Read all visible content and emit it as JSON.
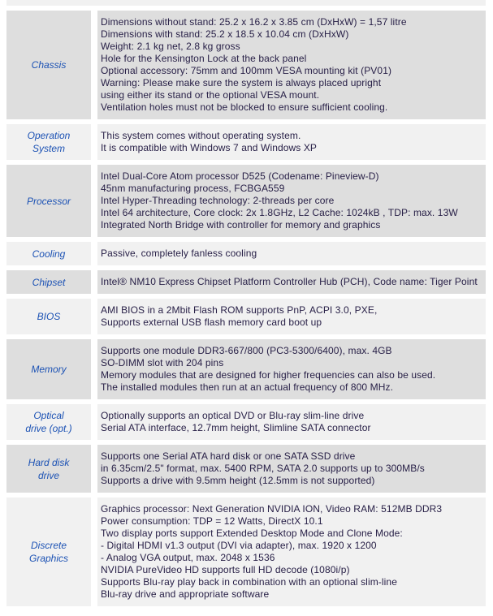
{
  "colors": {
    "row_dark": "#dedede",
    "row_light": "#f1f1f1",
    "label_blue": "#1c52b4",
    "body_text": "#282047",
    "page_bg": "#ffffff"
  },
  "table": {
    "rows": [
      {
        "label": "Chassis",
        "lines": [
          "Dimensions without stand: 25.2 x 16.2 x 3.85 cm (DxHxW) = 1,57 litre",
          "Dimensions with stand: 25.2 x 18.5 x 10.04 cm (DxHxW)",
          "Weight: 2.1 kg net, 2.8 kg gross",
          "Hole for the Kensington Lock at the back panel",
          "Optional accessory: 75mm and 100mm VESA mounting kit (PV01)",
          "Warning: Please make sure the system is always placed upright",
          "using either its stand or the optional VESA mount.",
          "Ventilation holes must not be blocked to ensure sufficient cooling."
        ]
      },
      {
        "label": [
          "Operation",
          "System"
        ],
        "lines": [
          "This system comes without operating system.",
          "It is compatible with Windows 7 and Windows XP"
        ]
      },
      {
        "label": "Processor",
        "lines": [
          "Intel Dual-Core Atom processor D525 (Codename: Pineview-D)",
          "45nm manufacturing process, FCBGA559",
          "Intel Hyper-Threading technology: 2-threads per core",
          "Intel 64 architecture, Core clock: 2x 1.8GHz, L2 Cache: 1024kB , TDP: max. 13W",
          "Integrated North Bridge with controller for memory and graphics"
        ]
      },
      {
        "label": "Cooling",
        "lines": [
          "Passive, completely fanless cooling"
        ]
      },
      {
        "label": "Chipset",
        "lines": [
          "Intel® NM10 Express Chipset Platform Controller Hub (PCH), Code name: Tiger Point"
        ]
      },
      {
        "label": "BIOS",
        "lines": [
          "AMI BIOS in a 2Mbit Flash ROM supports PnP, ACPI 3.0, PXE,",
          "Supports external USB flash memory card boot up"
        ]
      },
      {
        "label": "Memory",
        "lines": [
          "Supports one module DDR3-667/800 (PC3-5300/6400), max. 4GB",
          "SO-DIMM slot with 204 pins",
          "Memory modules that are designed for higher frequencies can also be used.",
          "The installed modules then run at an actual frequency of 800 MHz."
        ]
      },
      {
        "label": [
          "Optical",
          "drive (opt.)"
        ],
        "lines": [
          "Optionally supports an optical DVD or Blu-ray slim-line drive",
          "Serial ATA interface, 12.7mm height, Slimline SATA connector"
        ]
      },
      {
        "label": [
          "Hard disk",
          "drive"
        ],
        "lines": [
          "Supports one Serial ATA hard disk or one SATA SSD drive",
          "in 6.35cm/2.5\" format, max. 5400 RPM, SATA 2.0 supports up to 300MB/s",
          "Supports a drive with 9.5mm height (12.5mm is not supported)"
        ]
      },
      {
        "label": [
          "Discrete",
          "Graphics"
        ],
        "lines": [
          "Graphics processor: Next Generation NVIDIA ION, Video RAM: 512MB DDR3",
          "Power consumption: TDP = 12 Watts, DirectX 10.1",
          "Two display ports support Extended Desktop Mode and Clone Mode:",
          "- Digital HDMI v1.3 output (DVI via adapter), max. 1920 x 1200",
          "- Analog VGA output, max. 2048 x 1536",
          "NVIDIA PureVideo HD supports full HD decode (1080i/p)",
          "Supports Blu-ray play back in combination with an optional slim-line",
          "Blu-ray drive and appropriate software"
        ]
      }
    ]
  }
}
